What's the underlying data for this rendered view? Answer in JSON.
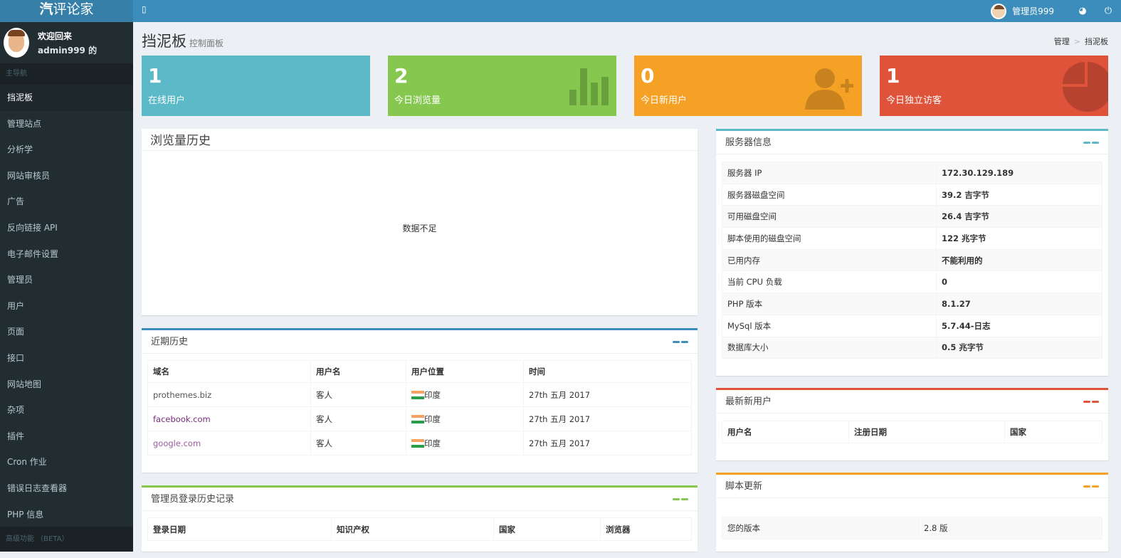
{
  "app": {
    "logo_bold": "汽",
    "logo_rest": "评论家",
    "toggle": "▯"
  },
  "topbar": {
    "user": "管理员999",
    "globe_icon": "globe-icon",
    "power_icon": "power-icon"
  },
  "user_panel": {
    "welcome": "欢迎回来",
    "username": "admin999 的"
  },
  "sidebar": {
    "header": "主导航",
    "items": [
      {
        "label": "挡泥板"
      },
      {
        "label": "管理站点"
      },
      {
        "label": "分析学"
      },
      {
        "label": "网站审核员"
      },
      {
        "label": "广告"
      },
      {
        "label": "反向链接 API"
      },
      {
        "label": "电子邮件设置"
      },
      {
        "label": "管理员"
      },
      {
        "label": "用户"
      },
      {
        "label": "页面"
      },
      {
        "label": "接口"
      },
      {
        "label": "网站地图"
      },
      {
        "label": "杂项"
      },
      {
        "label": "插件"
      },
      {
        "label": "Cron 作业"
      },
      {
        "label": "错误日志查看器"
      },
      {
        "label": "PHP 信息"
      }
    ],
    "header2": "高级功能 （BETA）"
  },
  "page": {
    "title": "挡泥板",
    "subtitle": "控制面板",
    "breadcrumb": [
      "管理",
      "挡泥板"
    ]
  },
  "stats": [
    {
      "value": "1",
      "label": "在线用户",
      "color": "#5bb9c8"
    },
    {
      "value": "2",
      "label": "今日浏览量",
      "color": "#86c84f"
    },
    {
      "value": "0",
      "label": "今日新用户",
      "color": "#f5a125"
    },
    {
      "value": "1",
      "label": "今日独立访客",
      "color": "#e0533b"
    }
  ],
  "views_history": {
    "title": "浏览量历史",
    "empty": "数据不足"
  },
  "recent_history": {
    "title": "近期历史",
    "columns": [
      "域名",
      "用户名",
      "用户位置",
      "时间"
    ],
    "rows": [
      [
        "prothemes.biz",
        "客人",
        "印度",
        "27th 五月 2017"
      ],
      [
        "facebook.com",
        "客人",
        "印度",
        "27th 五月 2017"
      ],
      [
        "google.com",
        "客人",
        "印度",
        "27th 五月 2017"
      ]
    ]
  },
  "admin_login": {
    "title": "管理员登录历史记录",
    "columns": [
      "登录日期",
      "知识产权",
      "国家",
      "浏览器"
    ]
  },
  "server_info": {
    "title": "服务器信息",
    "rows": [
      [
        "服务器 IP",
        "172.30.129.189"
      ],
      [
        "服务器磁盘空间",
        "39.2 吉字节"
      ],
      [
        "可用磁盘空间",
        "26.4 吉字节"
      ],
      [
        "脚本使用的磁盘空间",
        "122 兆字节"
      ],
      [
        "已用内存",
        "不能利用的"
      ],
      [
        "当前 CPU 负载",
        "0"
      ],
      [
        "PHP 版本",
        "8.1.27"
      ],
      [
        "MySql 版本",
        "5.7.44-日志"
      ],
      [
        "数据库大小",
        "0.5 兆字节"
      ]
    ]
  },
  "new_users": {
    "title": "最新新用户",
    "columns": [
      "用户名",
      "注册日期",
      "国家"
    ]
  },
  "script_update": {
    "title": "脚本更新",
    "rows": [
      [
        "您的版本",
        "2.8 版"
      ]
    ]
  }
}
